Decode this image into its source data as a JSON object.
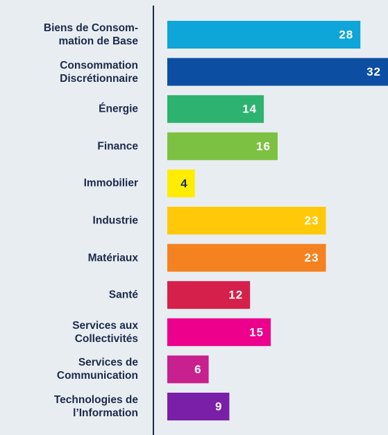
{
  "chart_data": {
    "type": "barh",
    "categories": [
      "Biens de Consom-\nmation de Base",
      "Consommation\nDiscrétionnaire",
      "Énergie",
      "Finance",
      "Immobilier",
      "Industrie",
      "Matériaux",
      "Santé",
      "Services aux\nCollectivités",
      "Services de\nCommunication",
      "Technologies de\nl’Information"
    ],
    "values": [
      28,
      32,
      14,
      16,
      4,
      23,
      23,
      12,
      15,
      6,
      9
    ],
    "colors": [
      "#0ea5d8",
      "#0b4ea2",
      "#2db36f",
      "#7dc142",
      "#ffed00",
      "#ffc90a",
      "#f58220",
      "#d4204a",
      "#ec008c",
      "#c8208e",
      "#7a1fa8"
    ]
  }
}
